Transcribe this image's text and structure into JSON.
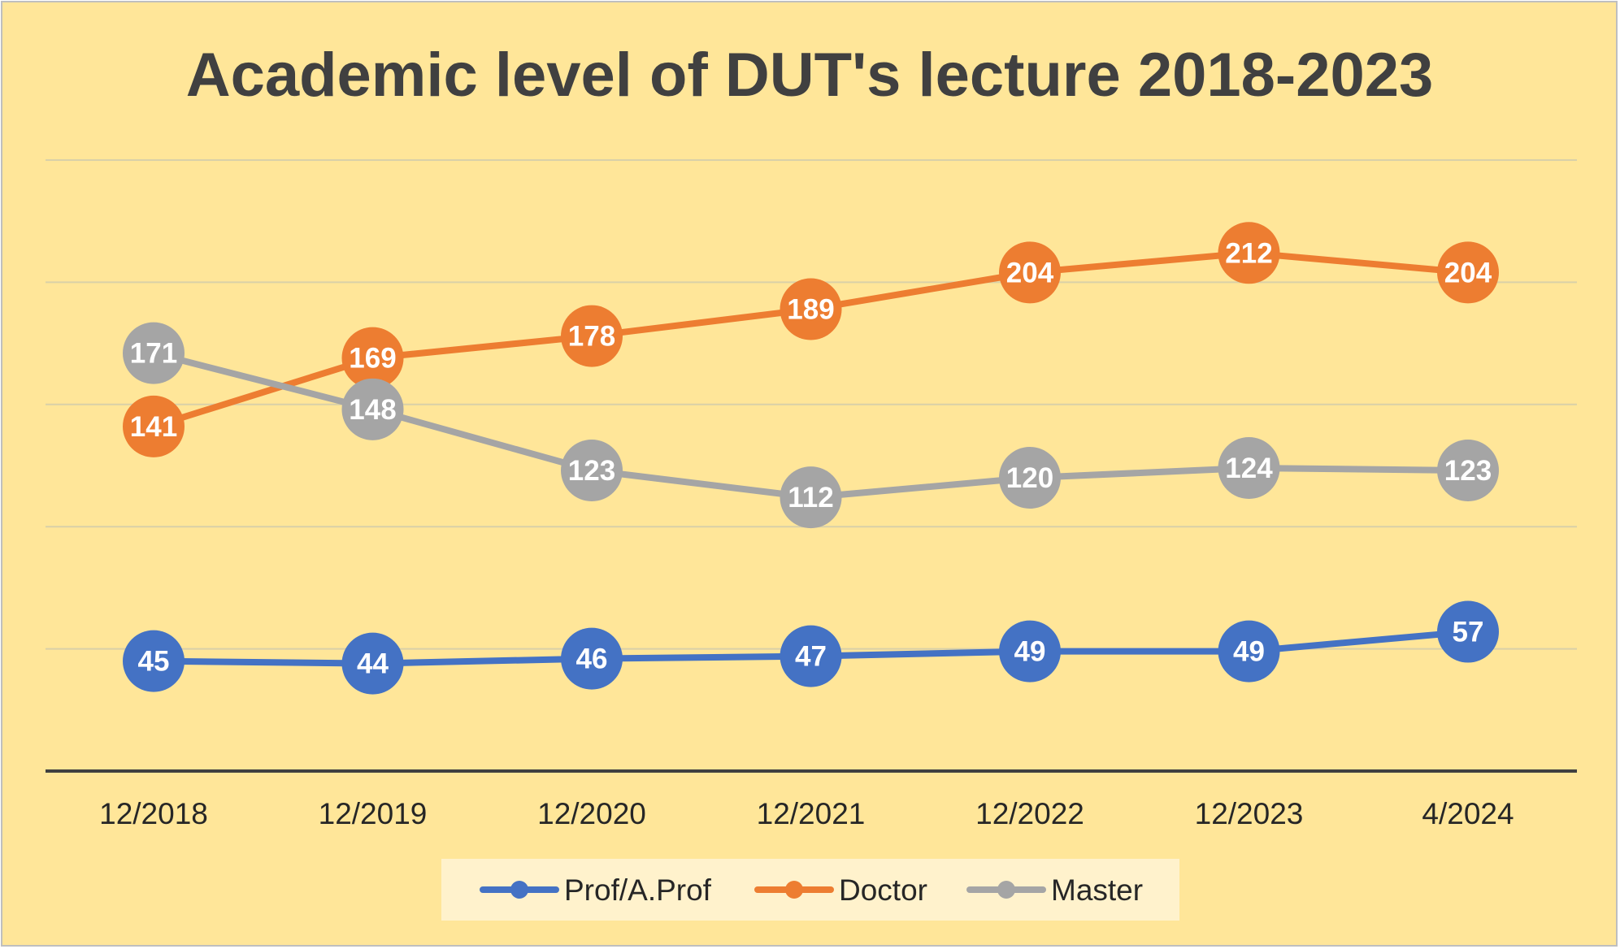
{
  "chart_data": {
    "type": "line",
    "title": "Academic level of DUT's lecture 2018-2023",
    "categories": [
      "12/2018",
      "12/2019",
      "12/2020",
      "12/2021",
      "12/2022",
      "12/2023",
      "4/2024"
    ],
    "series": [
      {
        "name": "Prof/A.Prof",
        "color": "#4472c4",
        "values": [
          45,
          44,
          46,
          47,
          49,
          49,
          57
        ]
      },
      {
        "name": "Doctor",
        "color": "#ed7d31",
        "values": [
          141,
          169,
          178,
          189,
          204,
          212,
          204
        ]
      },
      {
        "name": "Master",
        "color": "#a5a5a5",
        "values": [
          171,
          148,
          123,
          112,
          120,
          124,
          123
        ]
      }
    ],
    "ylim": [
      0,
      250
    ],
    "gridlines": [
      50,
      100,
      150,
      200,
      250
    ],
    "grid": true,
    "data_labels": true,
    "legend": "bottom",
    "colors": {
      "background": "#ffe699",
      "legend_background": "#fff2cc",
      "axis": "#404040"
    }
  }
}
